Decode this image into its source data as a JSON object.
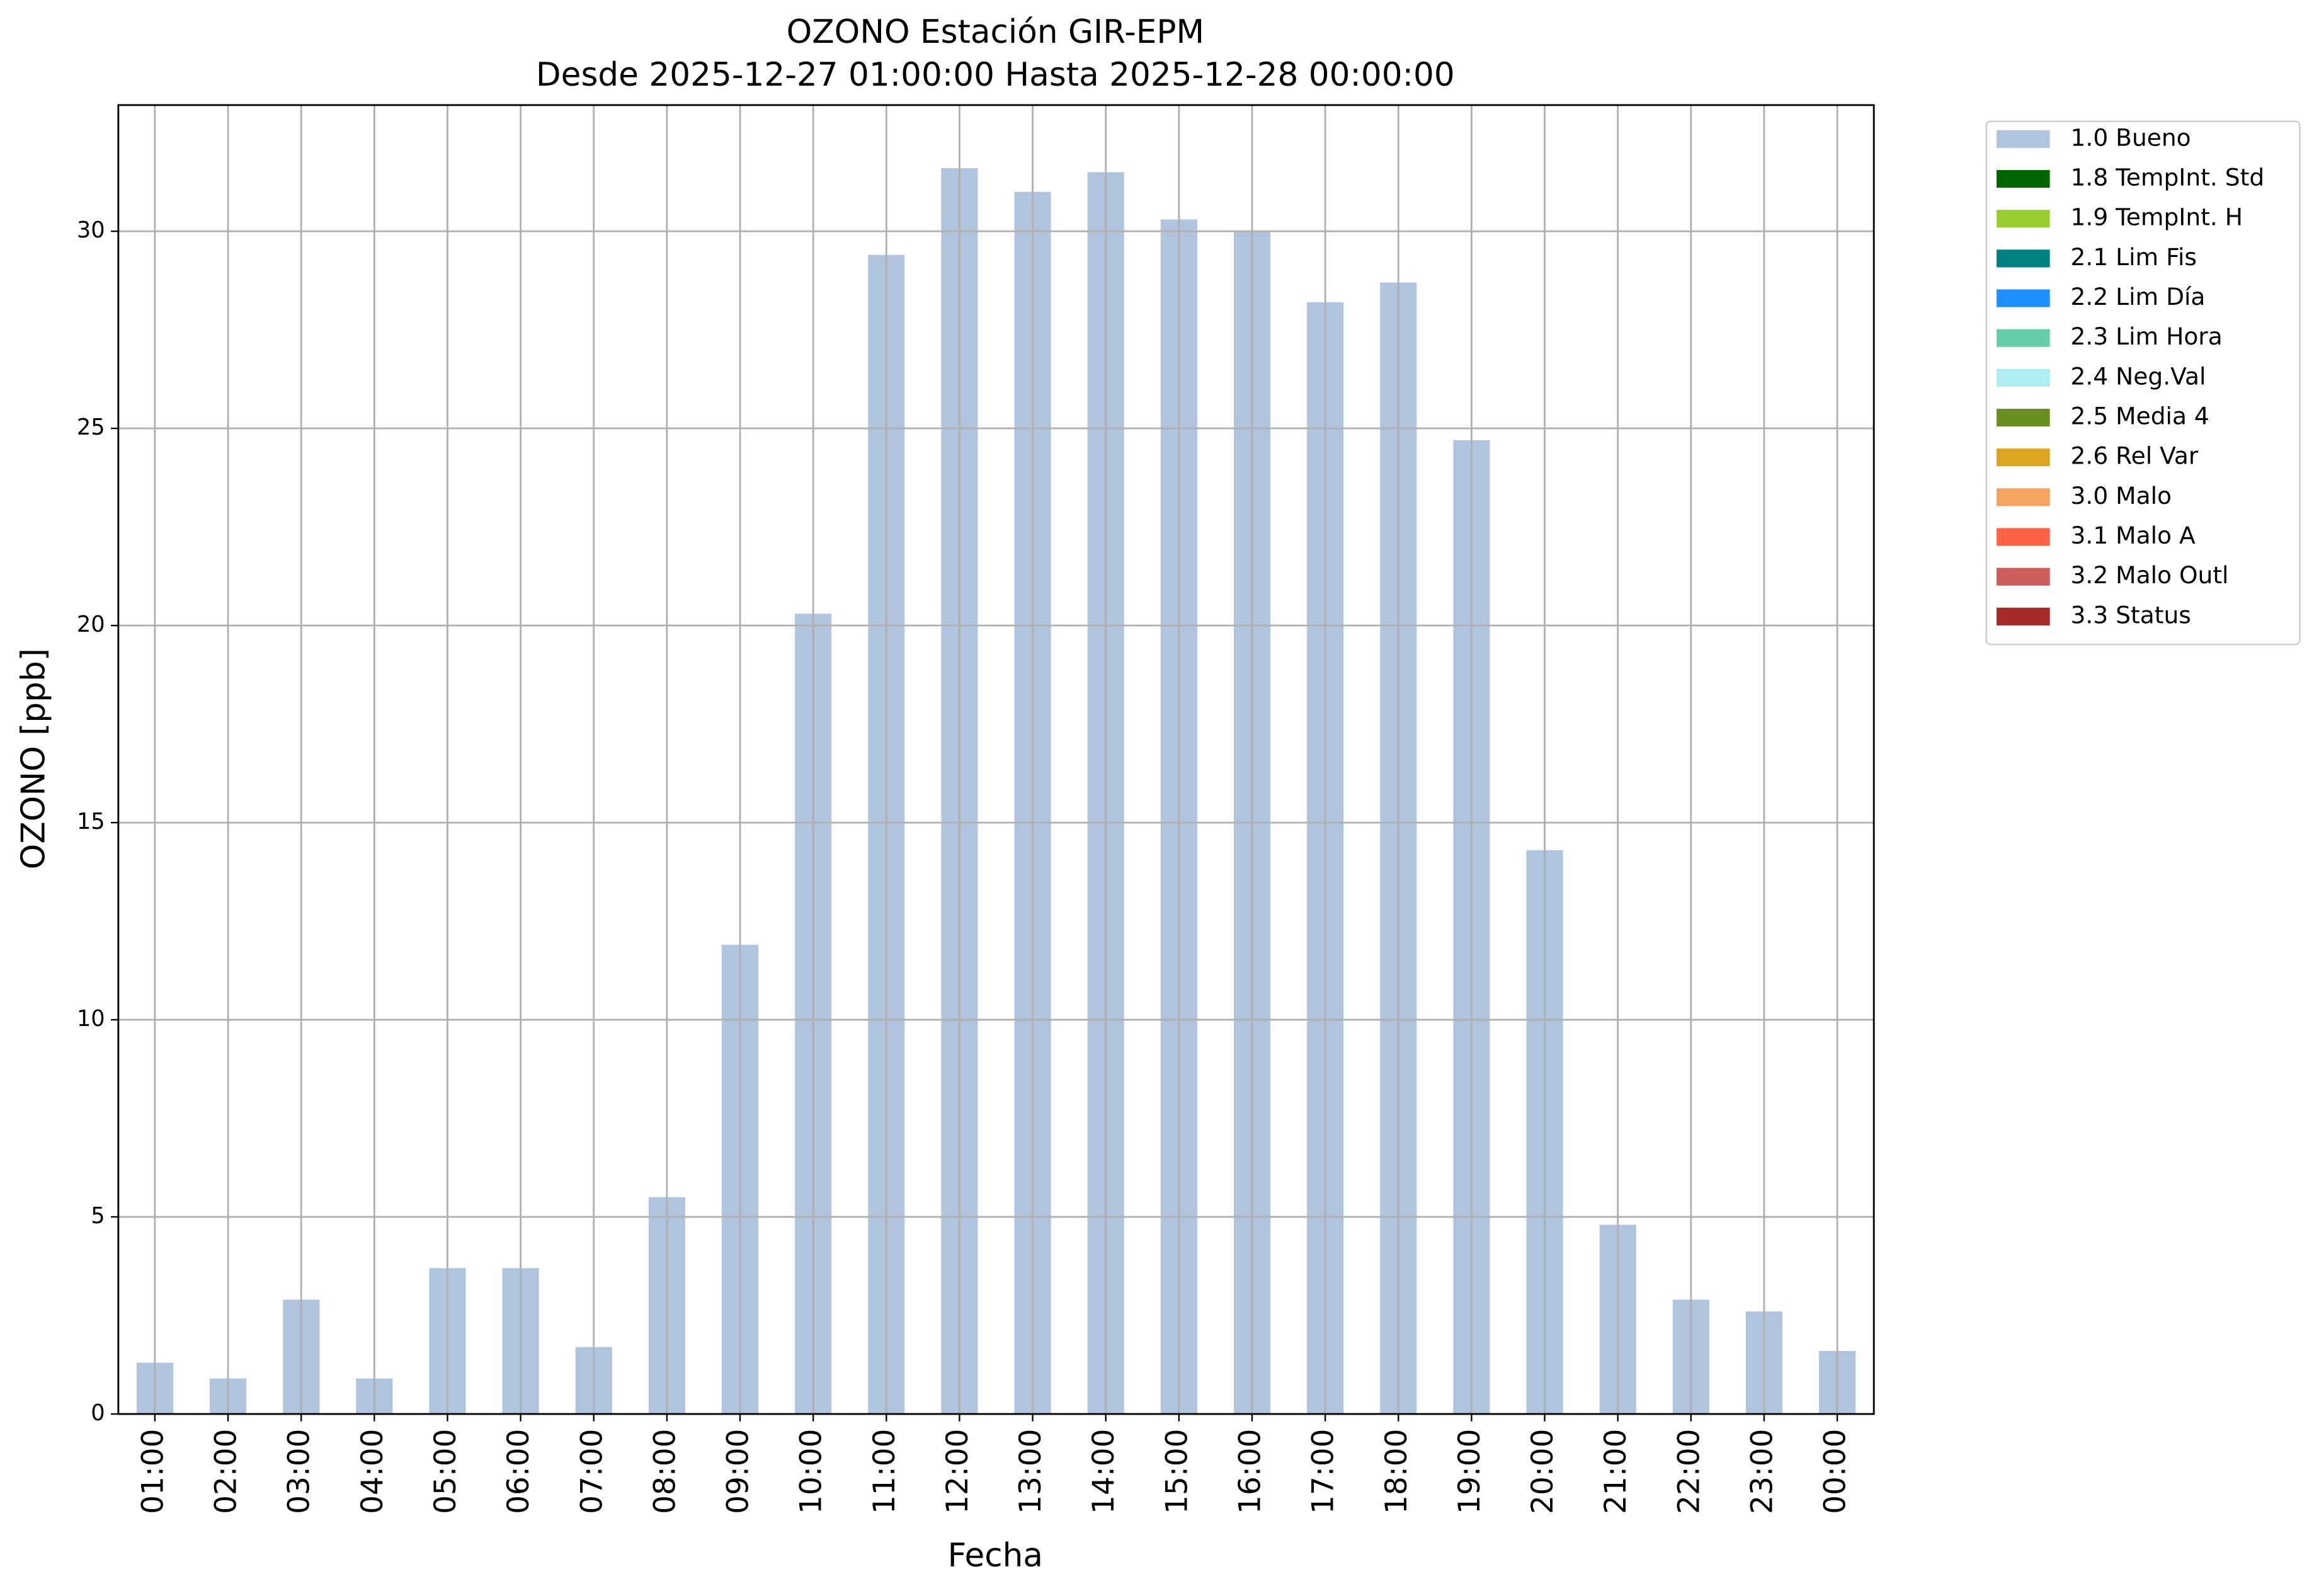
{
  "chart_data": {
    "type": "bar",
    "title": "OZONO Estación GIR-EPM",
    "subtitle": "Desde 2025-12-27 01:00:00 Hasta 2025-12-28 00:00:00",
    "x_label": "Fecha",
    "y_label": "OZONO [ppb]",
    "categories": [
      "01:00",
      "02:00",
      "03:00",
      "04:00",
      "05:00",
      "06:00",
      "07:00",
      "08:00",
      "09:00",
      "10:00",
      "11:00",
      "12:00",
      "13:00",
      "14:00",
      "15:00",
      "16:00",
      "17:00",
      "18:00",
      "19:00",
      "20:00",
      "21:00",
      "22:00",
      "23:00",
      "00:00"
    ],
    "series": [
      {
        "name": "1.0 Bueno",
        "color": "#b0c4de",
        "values": [
          1.3,
          0.9,
          2.9,
          0.9,
          3.7,
          3.7,
          1.7,
          5.5,
          11.9,
          20.3,
          29.4,
          31.6,
          31.0,
          31.5,
          30.3,
          30.0,
          28.2,
          28.7,
          24.7,
          14.3,
          4.8,
          2.9,
          2.6,
          1.6
        ]
      },
      {
        "name": "1.8 TempInt. Std",
        "color": "#006400",
        "values": [
          null,
          null,
          null,
          null,
          null,
          null,
          null,
          null,
          null,
          null,
          null,
          null,
          null,
          null,
          null,
          null,
          null,
          null,
          null,
          null,
          null,
          null,
          null,
          null
        ]
      },
      {
        "name": "1.9 TempInt. H",
        "color": "#9acd32",
        "values": [
          null,
          null,
          null,
          null,
          null,
          null,
          null,
          null,
          null,
          null,
          null,
          null,
          null,
          null,
          null,
          null,
          null,
          null,
          null,
          null,
          null,
          null,
          null,
          null
        ]
      },
      {
        "name": "2.1 Lim Fis",
        "color": "#008080",
        "values": [
          null,
          null,
          null,
          null,
          null,
          null,
          null,
          null,
          null,
          null,
          null,
          null,
          null,
          null,
          null,
          null,
          null,
          null,
          null,
          null,
          null,
          null,
          null,
          null
        ]
      },
      {
        "name": "2.2 Lim Día",
        "color": "#1e90ff",
        "values": [
          null,
          null,
          null,
          null,
          null,
          null,
          null,
          null,
          null,
          null,
          null,
          null,
          null,
          null,
          null,
          null,
          null,
          null,
          null,
          null,
          null,
          null,
          null,
          null
        ]
      },
      {
        "name": "2.3 Lim Hora",
        "color": "#66cdaa",
        "values": [
          null,
          null,
          null,
          null,
          null,
          null,
          null,
          null,
          null,
          null,
          null,
          null,
          null,
          null,
          null,
          null,
          null,
          null,
          null,
          null,
          null,
          null,
          null,
          null
        ]
      },
      {
        "name": "2.4 Neg.Val",
        "color": "#afeeee",
        "values": [
          null,
          null,
          null,
          null,
          null,
          null,
          null,
          null,
          null,
          null,
          null,
          null,
          null,
          null,
          null,
          null,
          null,
          null,
          null,
          null,
          null,
          null,
          null,
          null
        ]
      },
      {
        "name": "2.5 Media 4",
        "color": "#6b8e23",
        "values": [
          null,
          null,
          null,
          null,
          null,
          null,
          null,
          null,
          null,
          null,
          null,
          null,
          null,
          null,
          null,
          null,
          null,
          null,
          null,
          null,
          null,
          null,
          null,
          null
        ]
      },
      {
        "name": "2.6 Rel Var",
        "color": "#daa520",
        "values": [
          null,
          null,
          null,
          null,
          null,
          null,
          null,
          null,
          null,
          null,
          null,
          null,
          null,
          null,
          null,
          null,
          null,
          null,
          null,
          null,
          null,
          null,
          null,
          null
        ]
      },
      {
        "name": "3.0 Malo",
        "color": "#f4a460",
        "values": [
          null,
          null,
          null,
          null,
          null,
          null,
          null,
          null,
          null,
          null,
          null,
          null,
          null,
          null,
          null,
          null,
          null,
          null,
          null,
          null,
          null,
          null,
          null,
          null
        ]
      },
      {
        "name": "3.1 Malo A",
        "color": "#ff6347",
        "values": [
          null,
          null,
          null,
          null,
          null,
          null,
          null,
          null,
          null,
          null,
          null,
          null,
          null,
          null,
          null,
          null,
          null,
          null,
          null,
          null,
          null,
          null,
          null,
          null
        ]
      },
      {
        "name": "3.2 Malo Outl",
        "color": "#cd5c5c",
        "values": [
          null,
          null,
          null,
          null,
          null,
          null,
          null,
          null,
          null,
          null,
          null,
          null,
          null,
          null,
          null,
          null,
          null,
          null,
          null,
          null,
          null,
          null,
          null,
          null
        ]
      },
      {
        "name": "3.3 Status",
        "color": "#a52a2a",
        "values": [
          null,
          null,
          null,
          null,
          null,
          null,
          null,
          null,
          null,
          null,
          null,
          null,
          null,
          null,
          null,
          null,
          null,
          null,
          null,
          null,
          null,
          null,
          null,
          null
        ]
      }
    ],
    "ylim": [
      0,
      33.2
    ],
    "yticks": [
      0,
      5,
      10,
      15,
      20,
      25,
      30
    ],
    "grid": true,
    "legend": "outside upper right"
  }
}
